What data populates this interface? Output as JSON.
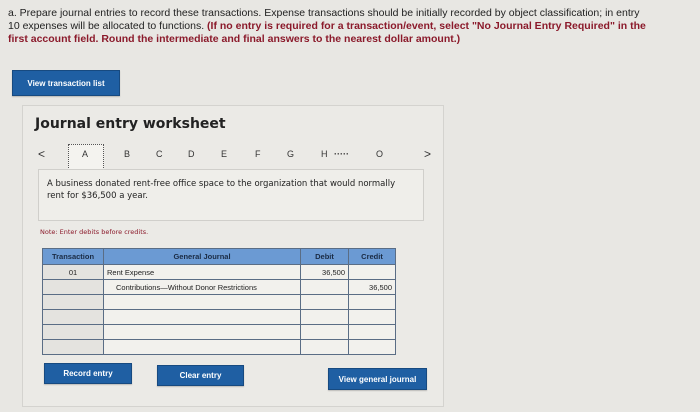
{
  "instructions": {
    "plain": "a. Prepare journal entries to record these transactions. Expense transactions should be initially recorded by object classification; in entry 10 expenses will be allocated to functions.",
    "emphasis": "(If no entry is required for a transaction/event, select \"No Journal Entry Required\" in the first account field. Round the intermediate and final answers to the nearest dollar amount.)"
  },
  "view_transaction_list": "View transaction list",
  "worksheet": {
    "title": "Journal entry worksheet",
    "prev": "<",
    "next": ">",
    "tabs": [
      "A",
      "B",
      "C",
      "D",
      "E",
      "F",
      "G",
      "H",
      "·····",
      "O"
    ],
    "active_tab": "A",
    "description": "A business donated rent-free office space to the organization that would normally rent for $36,500 a year.",
    "note": "Note: Enter debits before credits.",
    "table": {
      "headers": [
        "Transaction",
        "General Journal",
        "Debit",
        "Credit"
      ],
      "rows": [
        [
          "01",
          "Rent Expense",
          "36,500",
          ""
        ],
        [
          "",
          "Contributions—Without Donor Restrictions",
          "",
          "36,500"
        ],
        [
          "",
          "",
          "",
          ""
        ],
        [
          "",
          "",
          "",
          ""
        ],
        [
          "",
          "",
          "",
          ""
        ],
        [
          "",
          "",
          "",
          ""
        ]
      ]
    }
  },
  "buttons": {
    "record": "Record entry",
    "clear": "Clear entry",
    "view_journal": "View general journal"
  }
}
